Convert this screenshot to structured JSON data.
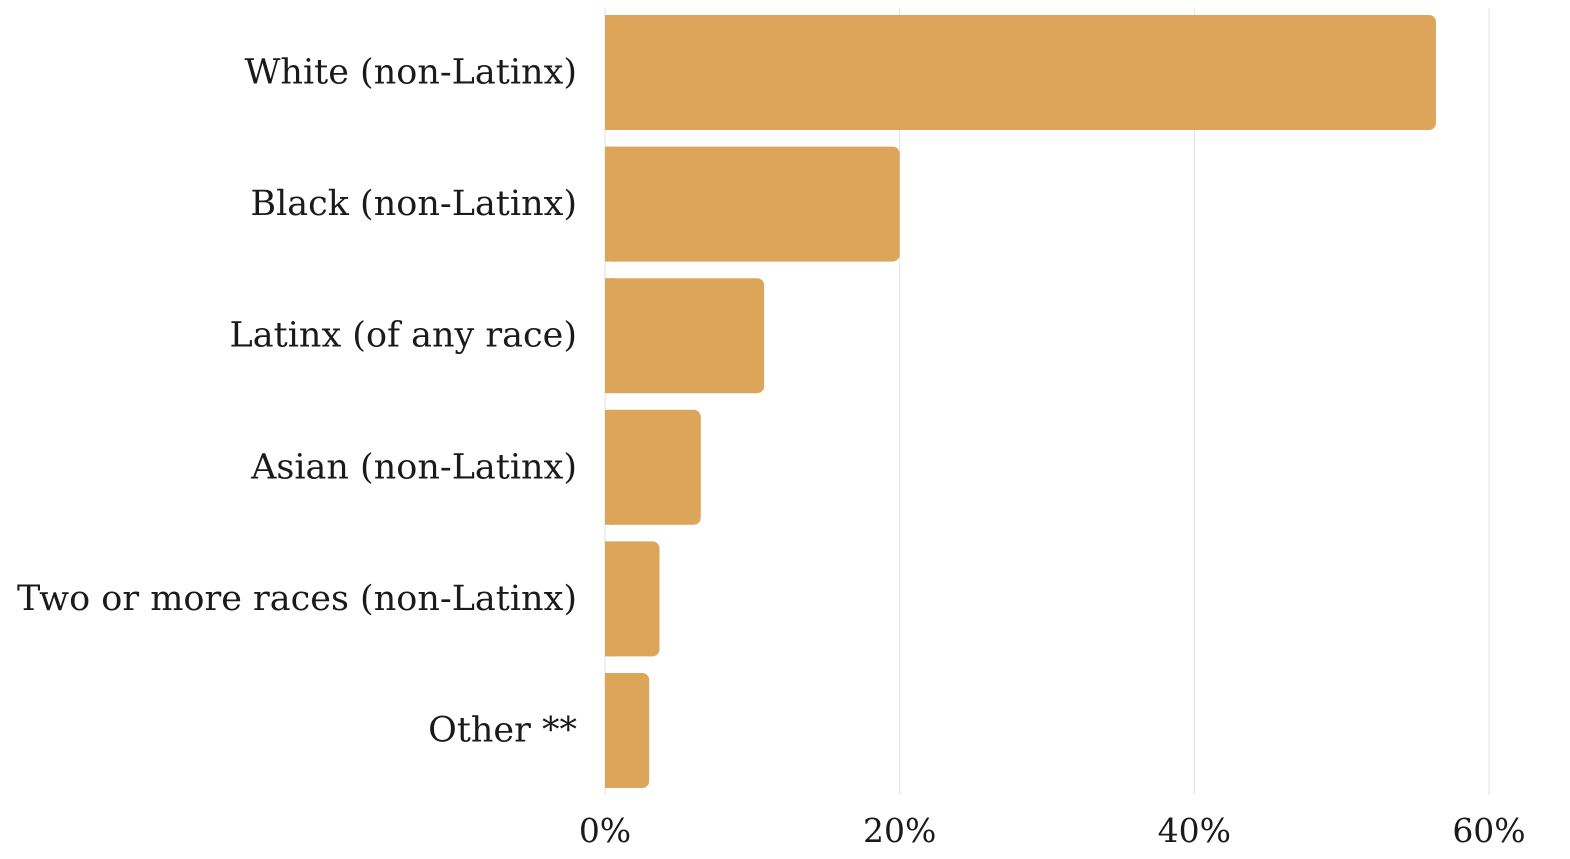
{
  "chart_data": {
    "type": "bar",
    "orientation": "horizontal",
    "title": "",
    "xlabel": "",
    "ylabel": "",
    "categories": [
      "White (non-Latinx)",
      "Black (non-Latinx)",
      "Latinx (of any race)",
      "Asian (non-Latinx)",
      "Two or more races (non-Latinx)",
      "Other **"
    ],
    "values": [
      56.4,
      20.0,
      10.8,
      6.5,
      3.7,
      3.0
    ],
    "xlim": [
      0,
      60
    ],
    "x_ticks": [
      0,
      20,
      40,
      60
    ],
    "x_tick_labels": [
      "0%",
      "20%",
      "40%",
      "60%"
    ],
    "grid": true,
    "legend": "none",
    "bar_color": "#dca55a",
    "grid_color": "#e2e2e2"
  }
}
